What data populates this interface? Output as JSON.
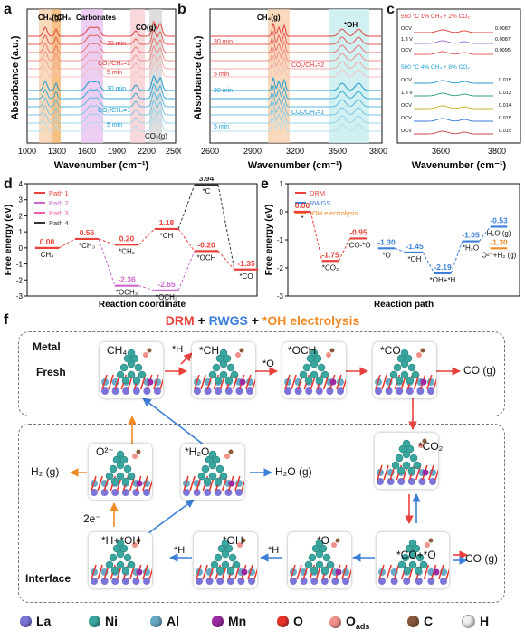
{
  "panel_labels": [
    "a",
    "b",
    "c",
    "d",
    "e",
    "f"
  ],
  "panel_a": {
    "ylabel": "Absorbance (a.u.)",
    "xlabel": "Wavenumber (cm⁻¹)",
    "ticks": [
      "1000",
      "1300",
      "1600",
      "1900",
      "2200",
      "2500"
    ],
    "annotations": [
      "CH₄(g)",
      "*CH₃",
      "Carbonates",
      "CO(g)",
      "CO₂(g)"
    ],
    "series_labels": [
      "30 min",
      "5 min",
      "CO₂/CH₄=2",
      "30 min",
      "5 min",
      "CO₂/CH₄=1"
    ]
  },
  "panel_b": {
    "ylabel": "Absorbance (a.u.)",
    "xlabel": "Wavenumber (cm⁻¹)",
    "ticks": [
      "2600",
      "2900",
      "3200",
      "3500",
      "3800"
    ],
    "annotations": [
      "CH₄(g)",
      "*OH"
    ],
    "series_labels": [
      "30 min",
      "5 min",
      "CO₂/CH₄=2",
      "30 min",
      "5 min",
      "CO₂/CH₄=1"
    ]
  },
  "panel_c": {
    "xlabel": "Wavenumber (cm⁻¹)",
    "ticks": [
      "3600",
      "3800"
    ],
    "header1": "550 °C 1% CH₄ + 2% CO₂",
    "header2": "500 °C 4% CH₄ + 8% CO₂",
    "rows_top": [
      {
        "left": "OCV",
        "right": "0.0087"
      },
      {
        "left": "1.8 V",
        "right": "0.0087"
      },
      {
        "left": "OCV",
        "right": "0.0095"
      }
    ],
    "rows_bottom": [
      {
        "left": "OCV",
        "right": "0.015"
      },
      {
        "left": "1.8 V",
        "right": "0.013"
      },
      {
        "left": "OCV",
        "right": "0.014"
      },
      {
        "left": "OCV",
        "right": "0.015"
      },
      {
        "left": "OCV",
        "right": "0.015"
      }
    ]
  },
  "chart_data": [
    {
      "type": "line",
      "title": "",
      "xlabel": "Reaction coordinate",
      "ylabel": "Free energy (eV)",
      "ylim": [
        -3,
        4
      ],
      "yticks": [
        "4",
        "3",
        "2",
        "1",
        "0",
        "-1",
        "-2",
        "-3"
      ],
      "series": [
        {
          "name": "Path 1",
          "color": "#e8413c",
          "points": [
            {
              "x": 0,
              "y": 0.0,
              "label": "0.00",
              "species": "CH₄"
            },
            {
              "x": 1,
              "y": 0.56,
              "label": "0.56",
              "species": "*CH₃"
            },
            {
              "x": 2,
              "y": 0.2,
              "label": "0.20",
              "species": "*CH₂"
            },
            {
              "x": 3,
              "y": 1.18,
              "label": "1.18",
              "species": "*CH"
            },
            {
              "x": 4,
              "y": -0.2,
              "label": "-0.20",
              "species": "*OCH"
            },
            {
              "x": 5,
              "y": -1.35,
              "label": "-1.35",
              "species": "*CO"
            }
          ]
        },
        {
          "name": "Path 2",
          "color": "#cc66cc",
          "points": [
            {
              "x": 2,
              "y": -2.36,
              "label": "-2.36",
              "species": "*OCH₃"
            },
            {
              "x": 3,
              "y": -2.65,
              "label": "-2.65",
              "species": "*OCH₂"
            }
          ]
        },
        {
          "name": "Path 3",
          "color": "#e85fa8",
          "points": []
        },
        {
          "name": "Path 4",
          "color": "#333333",
          "points": [
            {
              "x": 4,
              "y": 3.94,
              "label": "3.94",
              "species": "*C"
            }
          ]
        }
      ]
    },
    {
      "type": "line",
      "title": "",
      "xlabel": "Reaction path",
      "ylabel": "Free energy (eV)",
      "ylim": [
        -3,
        1
      ],
      "yticks": [
        "1",
        "0",
        "-1",
        "-2",
        "-3"
      ],
      "series": [
        {
          "name": "DRM",
          "color": "#e8413c",
          "points": [
            {
              "x": 0,
              "y": 0.0,
              "label": "0.00",
              "species": "*"
            },
            {
              "x": 1,
              "y": -1.75,
              "label": "-1.75",
              "species": "*CO₂"
            },
            {
              "x": 2,
              "y": -0.95,
              "label": "-0.95",
              "species": "*CO-*O"
            }
          ]
        },
        {
          "name": "RWGS",
          "color": "#3b7fd9",
          "points": [
            {
              "x": 3,
              "y": -1.3,
              "label": "-1.30",
              "species": "*O"
            },
            {
              "x": 4,
              "y": -1.45,
              "label": "-1.45",
              "species": "*OH"
            },
            {
              "x": 5,
              "y": -2.19,
              "label": "-2.19",
              "species": "*OH+*H"
            },
            {
              "x": 6,
              "y": -1.05,
              "label": "-1.05",
              "species": "*H₂O"
            },
            {
              "x": 7,
              "y": -0.53,
              "label": "-0.53",
              "species": "H₂O (g)"
            }
          ]
        },
        {
          "name": "*OH electrolysis",
          "color": "#f08a24",
          "points": [
            {
              "x": 7,
              "y": -1.3,
              "label": "-1.30",
              "species": "O²⁻+H₂ (g)"
            }
          ]
        }
      ]
    }
  ],
  "panel_f": {
    "title_parts": [
      {
        "text": "DRM",
        "color": "#e8413c"
      },
      {
        "text": " + ",
        "color": "#111111"
      },
      {
        "text": "RWGS",
        "color": "#3b7fd9"
      },
      {
        "text": " + ",
        "color": "#111111"
      },
      {
        "text": "*OH electrolysis",
        "color": "#f08a24"
      }
    ],
    "metal_label": "Metal",
    "fresh_label": "Fresh",
    "interface_label": "Interface",
    "species": {
      "ch4": "CH₄",
      "h1": "*H",
      "ch": "*CH",
      "o1": "*O",
      "och": "*OCH",
      "co": "*CO",
      "co_g1": "CO (g)",
      "o2minus": "O²⁻",
      "h2o": "*H₂O",
      "h2g": "H₂ (g)",
      "h2og": "H₂O (g)",
      "co2": "*CO₂",
      "twoe": "2e⁻",
      "hoh": "*H+*OH",
      "h2": "*H",
      "oh": "*OH",
      "h3": "*H",
      "o2": "*O",
      "coo": "*CO+*O",
      "co_g2": "CO (g)"
    },
    "legend": [
      {
        "label": "La",
        "color": "#7b74d9"
      },
      {
        "label": "Ni",
        "color": "#3aa6a0"
      },
      {
        "label": "Al",
        "color": "#67a9c7"
      },
      {
        "label": "Mn",
        "color": "#9c2aa0"
      },
      {
        "label": "O",
        "color": "#e8332a"
      },
      {
        "label": "O_ads",
        "color": "#f0908a"
      },
      {
        "label": "C",
        "color": "#8a5a3a"
      },
      {
        "label": "H",
        "color": "#f2f2f2"
      }
    ]
  }
}
